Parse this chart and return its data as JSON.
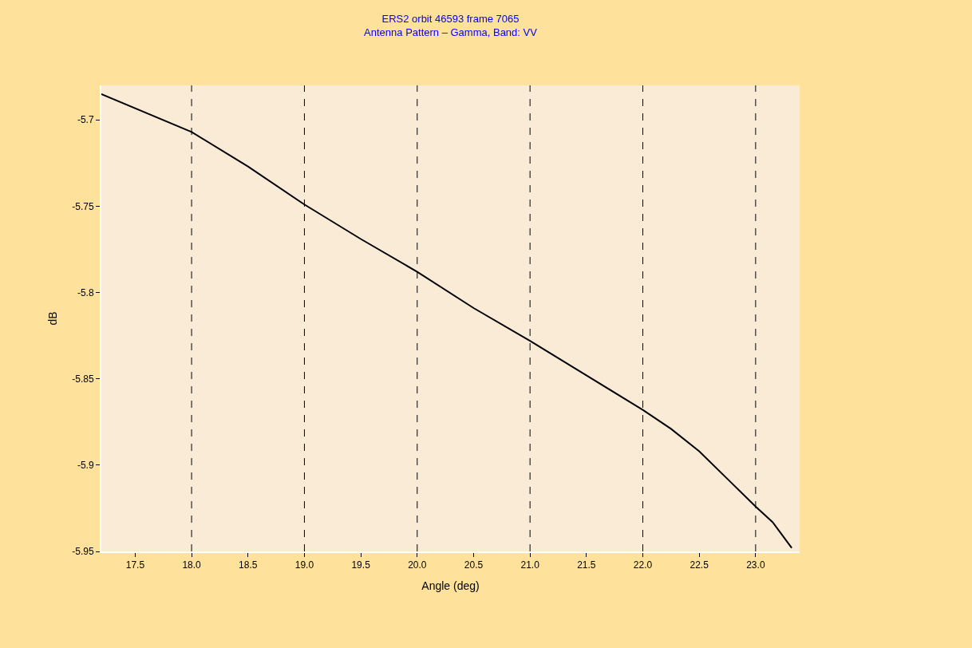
{
  "chart_data": {
    "type": "line",
    "title": "ERS2 orbit 46593 frame 7065",
    "subtitle": "Antenna Pattern – Gamma, Band: VV",
    "xlabel": "Angle (deg)",
    "ylabel": "dB",
    "series": [
      {
        "color": "#000000",
        "x": [
          17.2,
          18.0,
          18.5,
          19.0,
          19.5,
          20.0,
          20.5,
          21.0,
          21.5,
          22.0,
          22.25,
          22.5,
          22.75,
          23.0,
          23.15,
          23.32
        ],
        "values": [
          -5.685,
          -5.707,
          -5.727,
          -5.749,
          -5.769,
          -5.788,
          -5.809,
          -5.828,
          -5.848,
          -5.868,
          -5.879,
          -5.892,
          -5.908,
          -5.924,
          -5.933,
          -5.948
        ]
      }
    ],
    "xlim": [
      17.2,
      23.39
    ],
    "ylim": [
      -5.95,
      -5.68
    ],
    "xticks": [
      {
        "value": 17.5,
        "label": "17.5"
      },
      {
        "value": 18,
        "label": "18.0"
      },
      {
        "value": 18.5,
        "label": "18.5"
      },
      {
        "value": 19,
        "label": "19.0"
      },
      {
        "value": 19.5,
        "label": "19.5"
      },
      {
        "value": 20,
        "label": "20.0"
      },
      {
        "value": 20.5,
        "label": "20.5"
      },
      {
        "value": 21,
        "label": "21.0"
      },
      {
        "value": 21.5,
        "label": "21.5"
      },
      {
        "value": 22,
        "label": "22.0"
      },
      {
        "value": 22.5,
        "label": "22.5"
      },
      {
        "value": 23,
        "label": "23.0"
      }
    ],
    "yticks": [
      -5.7,
      -5.75,
      -5.8,
      -5.85,
      -5.9,
      -5.95
    ],
    "ref_lines": [
      {
        "axis": "x",
        "value": 18,
        "line_style": "dashed"
      },
      {
        "axis": "x",
        "value": 19,
        "line_style": "dashed"
      },
      {
        "axis": "x",
        "value": 20,
        "line_style": "dashed"
      },
      {
        "axis": "x",
        "value": 21,
        "line_style": "dashed"
      },
      {
        "axis": "x",
        "value": 22,
        "line_style": "dashed"
      },
      {
        "axis": "x",
        "value": 23,
        "line_style": "dashed"
      }
    ],
    "line_style": "solid",
    "marker": "none"
  }
}
